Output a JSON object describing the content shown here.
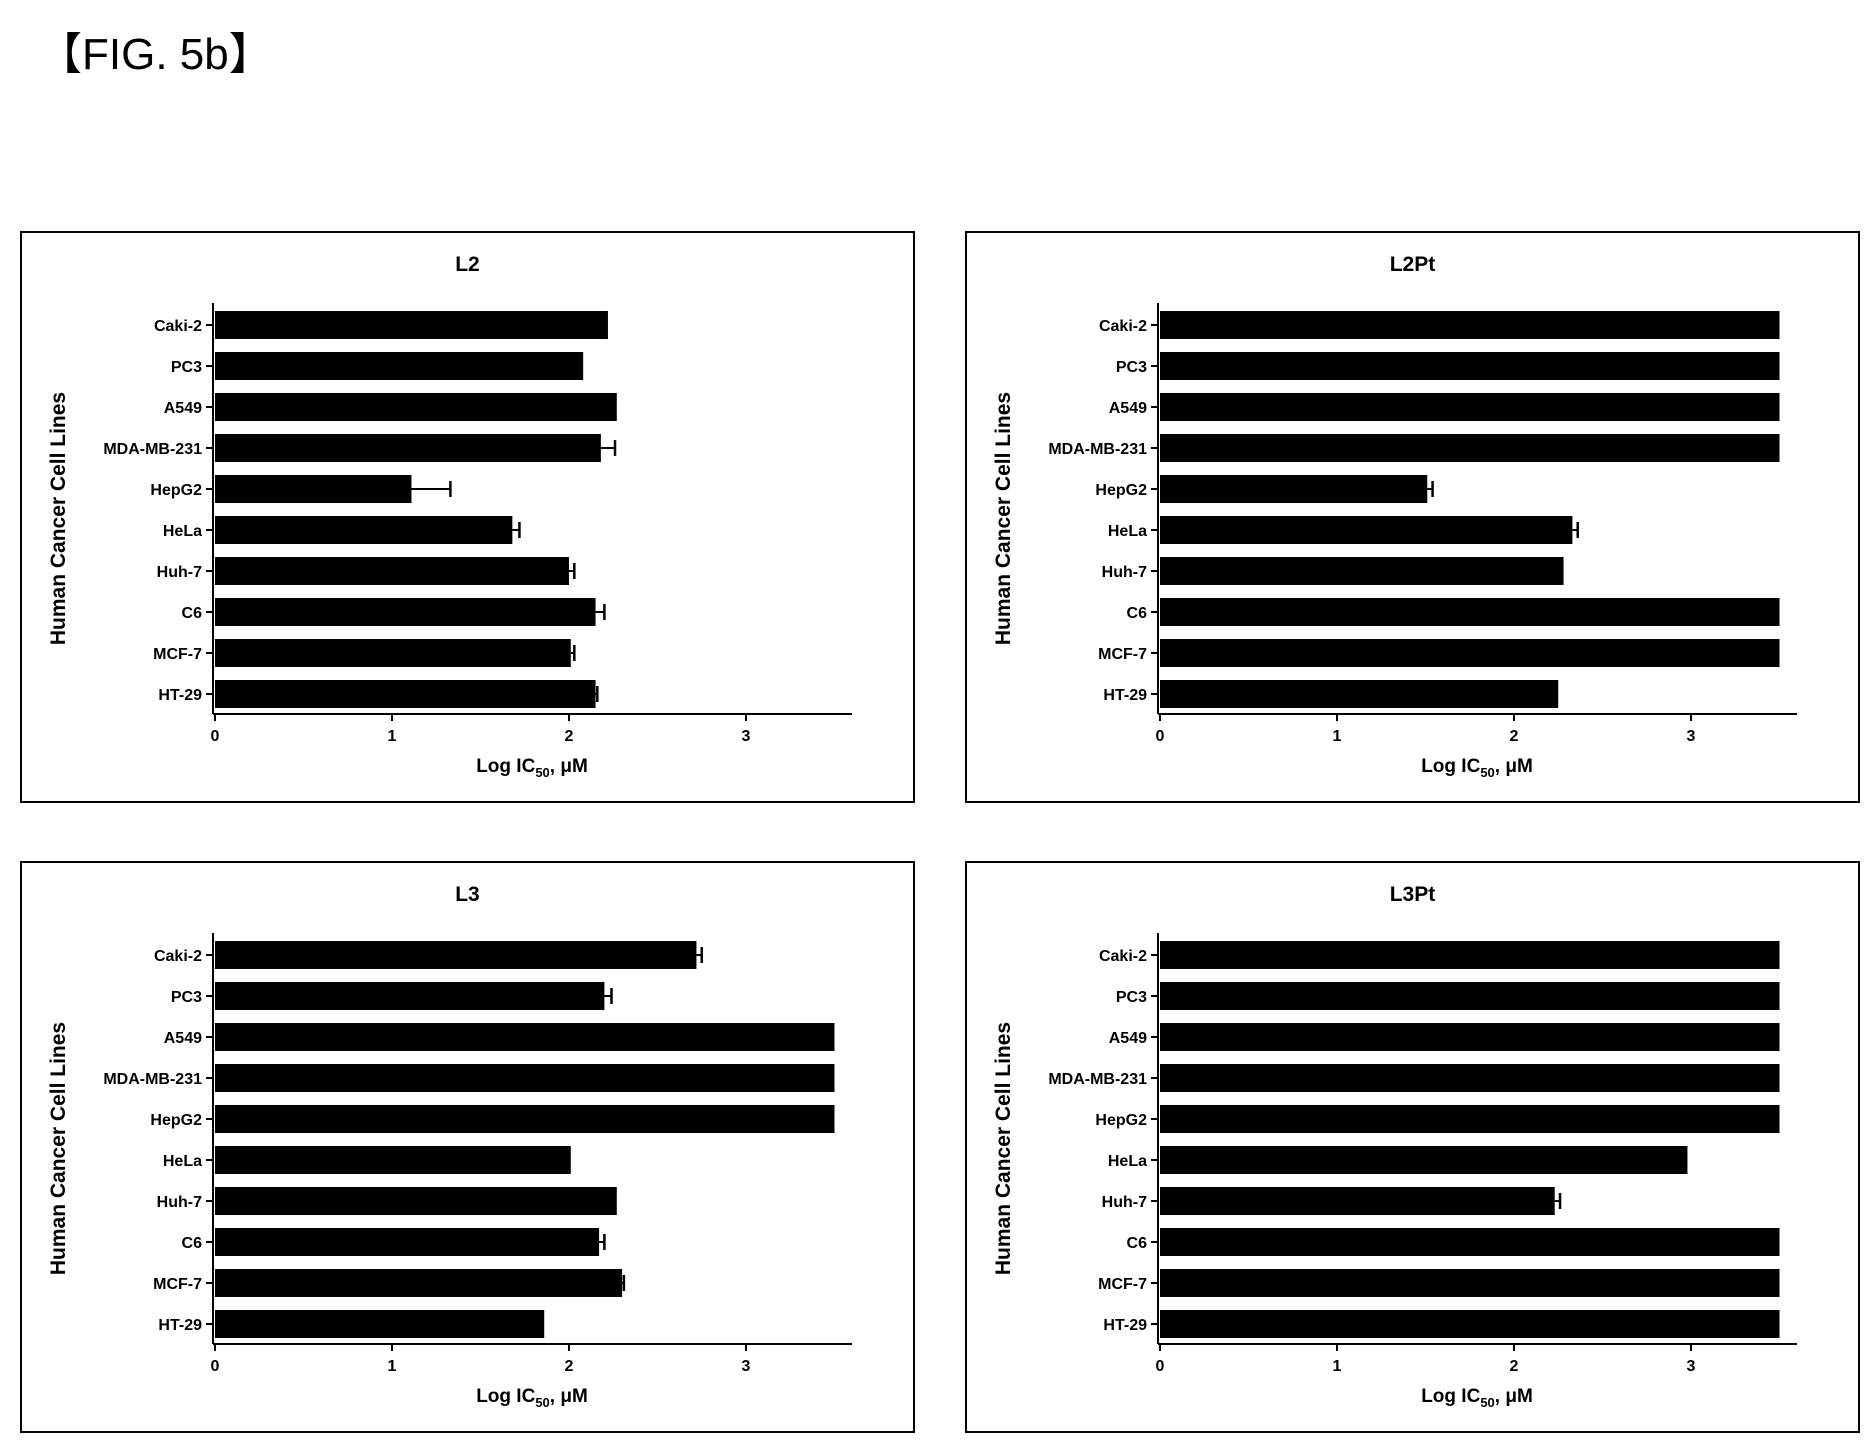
{
  "figure_label": "【FIG. 5b】",
  "chart_data": [
    {
      "type": "bar",
      "orientation": "horizontal",
      "title": "L2",
      "categories": [
        "Caki-2",
        "PC3",
        "A549",
        "MDA-MB-231",
        "HepG2",
        "HeLa",
        "Huh-7",
        "C6",
        "MCF-7",
        "HT-29"
      ],
      "values": [
        2.22,
        2.08,
        2.27,
        2.18,
        1.11,
        1.68,
        2.0,
        2.15,
        2.01,
        2.15
      ],
      "errors": [
        0.0,
        0.0,
        0.0,
        0.08,
        0.22,
        0.04,
        0.03,
        0.05,
        0.02,
        0.01
      ],
      "xlabel": "Log IC",
      "xlabel_sub": "50",
      "xlabel_unit": ", μM",
      "ylabel": "Human Cancer Cell Lines",
      "xlim": [
        0,
        3.6
      ],
      "xticks": [
        "0",
        "1",
        "2",
        "3"
      ],
      "grid": false,
      "bar_color": "#000000"
    },
    {
      "type": "bar",
      "orientation": "horizontal",
      "title": "L2Pt",
      "categories": [
        "Caki-2",
        "PC3",
        "A549",
        "MDA-MB-231",
        "HepG2",
        "HeLa",
        "Huh-7",
        "C6",
        "MCF-7",
        "HT-29"
      ],
      "values": [
        3.5,
        3.5,
        3.5,
        3.5,
        1.51,
        2.33,
        2.28,
        3.5,
        3.5,
        2.25
      ],
      "errors": [
        0.0,
        0.0,
        0.0,
        0.0,
        0.03,
        0.03,
        0.0,
        0.0,
        0.0,
        0.0
      ],
      "xlabel": "Log IC",
      "xlabel_sub": "50",
      "xlabel_unit": ", μM",
      "ylabel": "Human Cancer Cell Lines",
      "xlim": [
        0,
        3.6
      ],
      "xticks": [
        "0",
        "1",
        "2",
        "3"
      ],
      "grid": false,
      "bar_color": "#000000"
    },
    {
      "type": "bar",
      "orientation": "horizontal",
      "title": "L3",
      "categories": [
        "Caki-2",
        "PC3",
        "A549",
        "MDA-MB-231",
        "HepG2",
        "HeLa",
        "Huh-7",
        "C6",
        "MCF-7",
        "HT-29"
      ],
      "values": [
        2.72,
        2.2,
        3.5,
        3.5,
        3.5,
        2.01,
        2.27,
        2.17,
        2.3,
        1.86
      ],
      "errors": [
        0.03,
        0.04,
        0.0,
        0.0,
        0.0,
        0.0,
        0.0,
        0.03,
        0.01,
        0.0
      ],
      "xlabel": "Log IC",
      "xlabel_sub": "50",
      "xlabel_unit": ", μM",
      "ylabel": "Human Cancer Cell Lines",
      "xlim": [
        0,
        3.6
      ],
      "xticks": [
        "0",
        "1",
        "2",
        "3"
      ],
      "grid": false,
      "bar_color": "#000000"
    },
    {
      "type": "bar",
      "orientation": "horizontal",
      "title": "L3Pt",
      "categories": [
        "Caki-2",
        "PC3",
        "A549",
        "MDA-MB-231",
        "HepG2",
        "HeLa",
        "Huh-7",
        "C6",
        "MCF-7",
        "HT-29"
      ],
      "values": [
        3.5,
        3.5,
        3.5,
        3.5,
        3.5,
        2.98,
        2.23,
        3.5,
        3.5,
        3.5
      ],
      "errors": [
        0.0,
        0.0,
        0.0,
        0.0,
        0.0,
        0.0,
        0.03,
        0.0,
        0.0,
        0.0
      ],
      "xlabel": "Log IC",
      "xlabel_sub": "50",
      "xlabel_unit": ", μM",
      "ylabel": "Human Cancer Cell Lines",
      "xlim": [
        0,
        3.6
      ],
      "xticks": [
        "0",
        "1",
        "2",
        "3"
      ],
      "grid": false,
      "bar_color": "#000000"
    }
  ]
}
